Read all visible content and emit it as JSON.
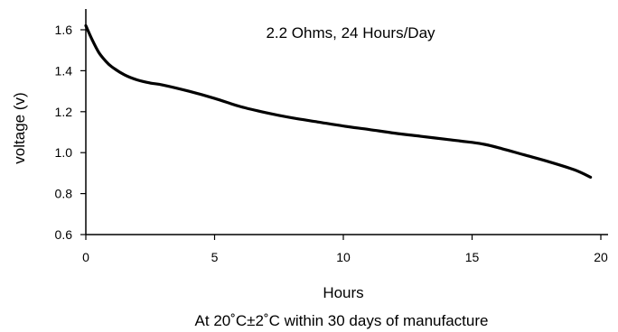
{
  "chart_data": {
    "type": "line",
    "title": "",
    "annotation": "2.2 Ohms, 24 Hours/Day",
    "xlabel": "Hours",
    "ylabel": "voltage (v)",
    "footnote": "At 20˚C±2˚C within 30 days of manufacture",
    "xlim": [
      0,
      20
    ],
    "ylim": [
      0.6,
      1.7
    ],
    "x_ticks": [
      0,
      5,
      10,
      15,
      20
    ],
    "x_tick_labels": [
      "0",
      "5",
      "10",
      "15",
      "20"
    ],
    "y_ticks": [
      0.6,
      0.8,
      1.0,
      1.2,
      1.4,
      1.6
    ],
    "y_tick_labels": [
      "0.6",
      "0.8",
      "1.0",
      "1.2",
      "1.4",
      "1.6"
    ],
    "grid": false,
    "legend": "none",
    "line_color": "#000000",
    "series": [
      {
        "x": [
          0,
          0.25,
          0.5,
          0.75,
          1,
          1.5,
          2,
          2.5,
          3,
          4,
          5,
          6,
          7,
          8,
          9,
          10,
          11,
          12,
          13,
          14,
          15,
          15.5,
          16,
          17,
          18,
          19,
          19.6
        ],
        "values": [
          1.62,
          1.55,
          1.49,
          1.45,
          1.42,
          1.38,
          1.355,
          1.34,
          1.33,
          1.3,
          1.265,
          1.225,
          1.195,
          1.17,
          1.15,
          1.13,
          1.113,
          1.095,
          1.08,
          1.065,
          1.05,
          1.04,
          1.025,
          0.99,
          0.955,
          0.915,
          0.88
        ]
      }
    ]
  }
}
